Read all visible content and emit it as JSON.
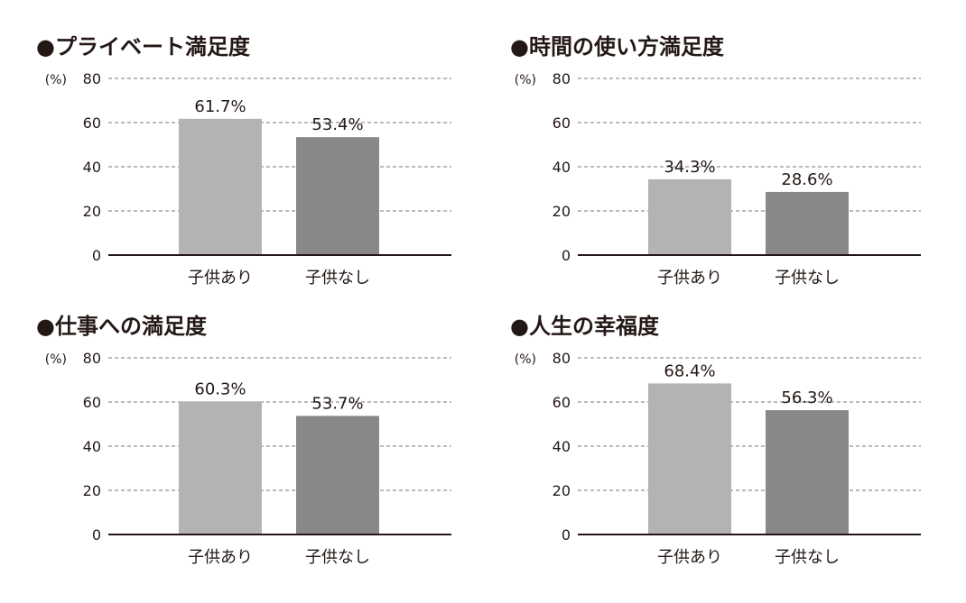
{
  "colors": {
    "with_children": "#b3b3b3",
    "without_children": "#888888",
    "axis": "#231815",
    "grid": "#777777",
    "bullet": "#231815"
  },
  "chart_data": [
    {
      "type": "bar",
      "title": "●プライベート満足度",
      "ylabel": "(%)",
      "ylim": [
        0,
        80
      ],
      "yticks": [
        "0",
        "20",
        "40",
        "60",
        "80"
      ],
      "grid": true,
      "categories": [
        "子供あり",
        "子供なし"
      ],
      "values": [
        61.7,
        53.4
      ],
      "labels": [
        "61.7%",
        "53.4%"
      ]
    },
    {
      "type": "bar",
      "title": "●時間の使い方満足度",
      "ylabel": "(%)",
      "ylim": [
        0,
        80
      ],
      "yticks": [
        "0",
        "20",
        "40",
        "60",
        "80"
      ],
      "grid": true,
      "categories": [
        "子供あり",
        "子供なし"
      ],
      "values": [
        34.3,
        28.6
      ],
      "labels": [
        "34.3%",
        "28.6%"
      ]
    },
    {
      "type": "bar",
      "title": "●仕事への満足度",
      "ylabel": "(%)",
      "ylim": [
        0,
        80
      ],
      "yticks": [
        "0",
        "20",
        "40",
        "60",
        "80"
      ],
      "grid": true,
      "categories": [
        "子供あり",
        "子供なし"
      ],
      "values": [
        60.3,
        53.7
      ],
      "labels": [
        "60.3%",
        "53.7%"
      ]
    },
    {
      "type": "bar",
      "title": "●人生の幸福度",
      "ylabel": "(%)",
      "ylim": [
        0,
        80
      ],
      "yticks": [
        "0",
        "20",
        "40",
        "60",
        "80"
      ],
      "grid": true,
      "categories": [
        "子供あり",
        "子供なし"
      ],
      "values": [
        68.4,
        56.3
      ],
      "labels": [
        "68.4%",
        "56.3%"
      ]
    }
  ]
}
